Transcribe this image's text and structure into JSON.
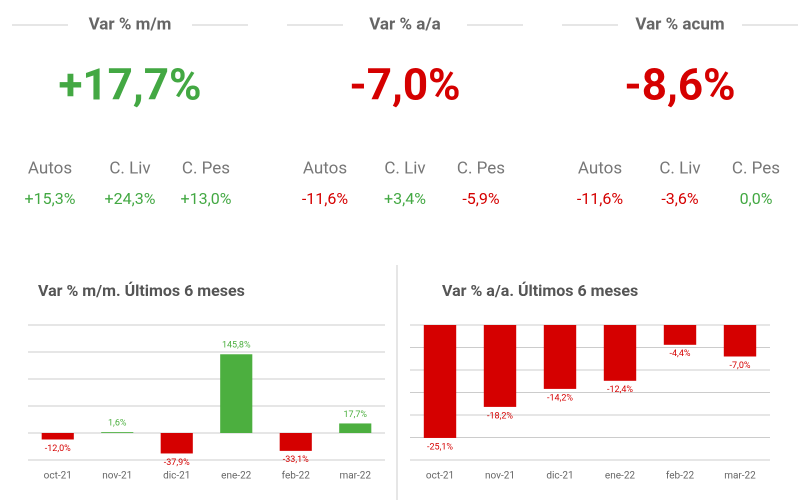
{
  "kpis": [
    {
      "title": "Var % m/m",
      "value": "+17,7%",
      "color": "#43a843",
      "items": [
        {
          "label": "Autos",
          "value": "+15,3%",
          "color": "#43a843"
        },
        {
          "label": "C. Liv",
          "value": "+24,3%",
          "color": "#43a843"
        },
        {
          "label": "C. Pes",
          "value": "+13,0%",
          "color": "#43a843"
        }
      ]
    },
    {
      "title": "Var % a/a",
      "value": "-7,0%",
      "color": "#d50000",
      "items": [
        {
          "label": "Autos",
          "value": "-11,6%",
          "color": "#d50000"
        },
        {
          "label": "C. Liv",
          "value": "+3,4%",
          "color": "#43a843"
        },
        {
          "label": "C. Pes",
          "value": "-5,9%",
          "color": "#d50000"
        }
      ]
    },
    {
      "title": "Var % acum",
      "value": "-8,6%",
      "color": "#d50000",
      "items": [
        {
          "label": "Autos",
          "value": "-11,6%",
          "color": "#d50000"
        },
        {
          "label": "C. Liv",
          "value": "-3,6%",
          "color": "#d50000"
        },
        {
          "label": "C. Pes",
          "value": "0,0%",
          "color": "#43a843"
        }
      ]
    }
  ],
  "chart_data": [
    {
      "type": "bar",
      "title": "Var % m/m. Últimos 6 meses",
      "categories": [
        "oct-21",
        "nov-21",
        "dic-21",
        "ene-22",
        "feb-22",
        "mar-22"
      ],
      "values": [
        -12.0,
        1.6,
        -37.9,
        145.8,
        -33.1,
        17.7
      ],
      "value_labels": [
        "-12,0%",
        "1,6%",
        "-37,9%",
        "145,8%",
        "-33,1%",
        "17,7%"
      ],
      "colors": [
        "#d50000",
        "#4caf3f",
        "#d50000",
        "#4caf3f",
        "#d50000",
        "#4caf3f"
      ],
      "ylim": [
        -50,
        200
      ],
      "yticks": [
        -50,
        0,
        50,
        100,
        150,
        200
      ],
      "grid": true
    },
    {
      "type": "bar",
      "title": "Var % a/a. Últimos 6 meses",
      "categories": [
        "oct-21",
        "nov-21",
        "dic-21",
        "ene-22",
        "feb-22",
        "mar-22"
      ],
      "values": [
        -25.1,
        -18.2,
        -14.2,
        -12.4,
        -4.4,
        -7.0
      ],
      "value_labels": [
        "-25,1%",
        "-18,2%",
        "-14,2%",
        "-12,4%",
        "-4,4%",
        "-7,0%"
      ],
      "colors": [
        "#d50000",
        "#d50000",
        "#d50000",
        "#d50000",
        "#d50000",
        "#d50000"
      ],
      "ylim": [
        -30,
        0
      ],
      "yticks": [
        -30,
        -25,
        -20,
        -15,
        -10,
        -5,
        0
      ],
      "grid": true
    }
  ]
}
